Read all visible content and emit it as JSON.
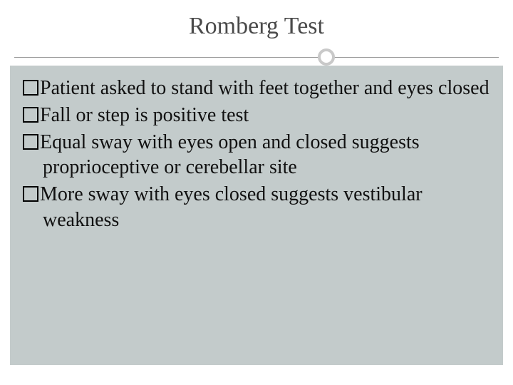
{
  "slide": {
    "title": "Romberg Test",
    "title_color": "#4a4a4a",
    "title_fontsize": 34,
    "divider": {
      "line_color": "#9c9c9c",
      "circle_border_color": "#c9c9c9",
      "circle_border_width": 4,
      "circle_position_pct": 62
    },
    "content": {
      "background_color": "#c3cbcb",
      "text_color": "#111111",
      "body_fontsize": 28,
      "bullet_style": "hollow-square",
      "items": [
        "Patient asked to stand with feet together and eyes closed",
        "Fall or step is positive test",
        "Equal sway with eyes open and closed suggests proprioceptive or cerebellar site",
        "More sway with eyes closed suggests vestibular weakness"
      ]
    }
  }
}
